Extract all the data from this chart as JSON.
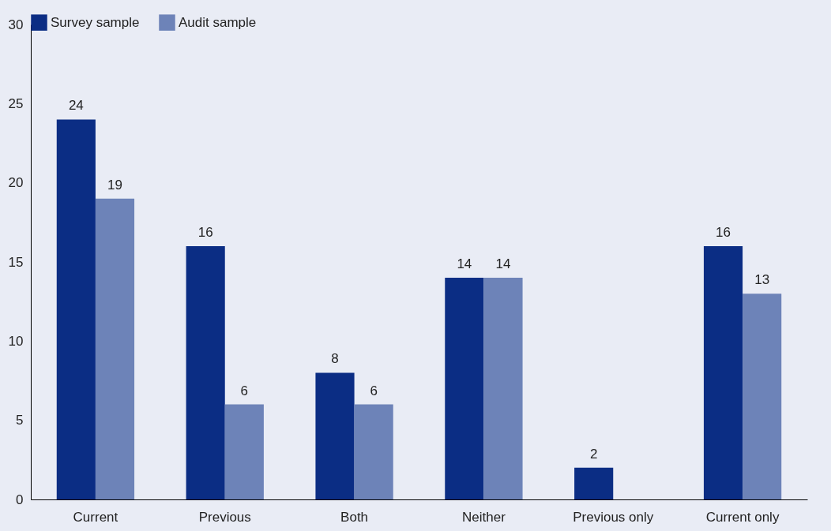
{
  "chart_data": {
    "type": "bar",
    "categories": [
      "Current",
      "Previous",
      "Both",
      "Neither",
      "Previous only",
      "Current only"
    ],
    "series": [
      {
        "name": "Survey sample",
        "color": "#0b2d84",
        "values": [
          24,
          16,
          8,
          14,
          2,
          16
        ]
      },
      {
        "name": "Audit sample",
        "color": "#6d83b8",
        "values": [
          19,
          6,
          6,
          14,
          null,
          13
        ]
      }
    ],
    "ylim": [
      0,
      30
    ],
    "yticks": [
      0,
      5,
      10,
      15,
      20,
      25,
      30
    ],
    "data_labels": true,
    "legend": "top",
    "grid": false
  }
}
